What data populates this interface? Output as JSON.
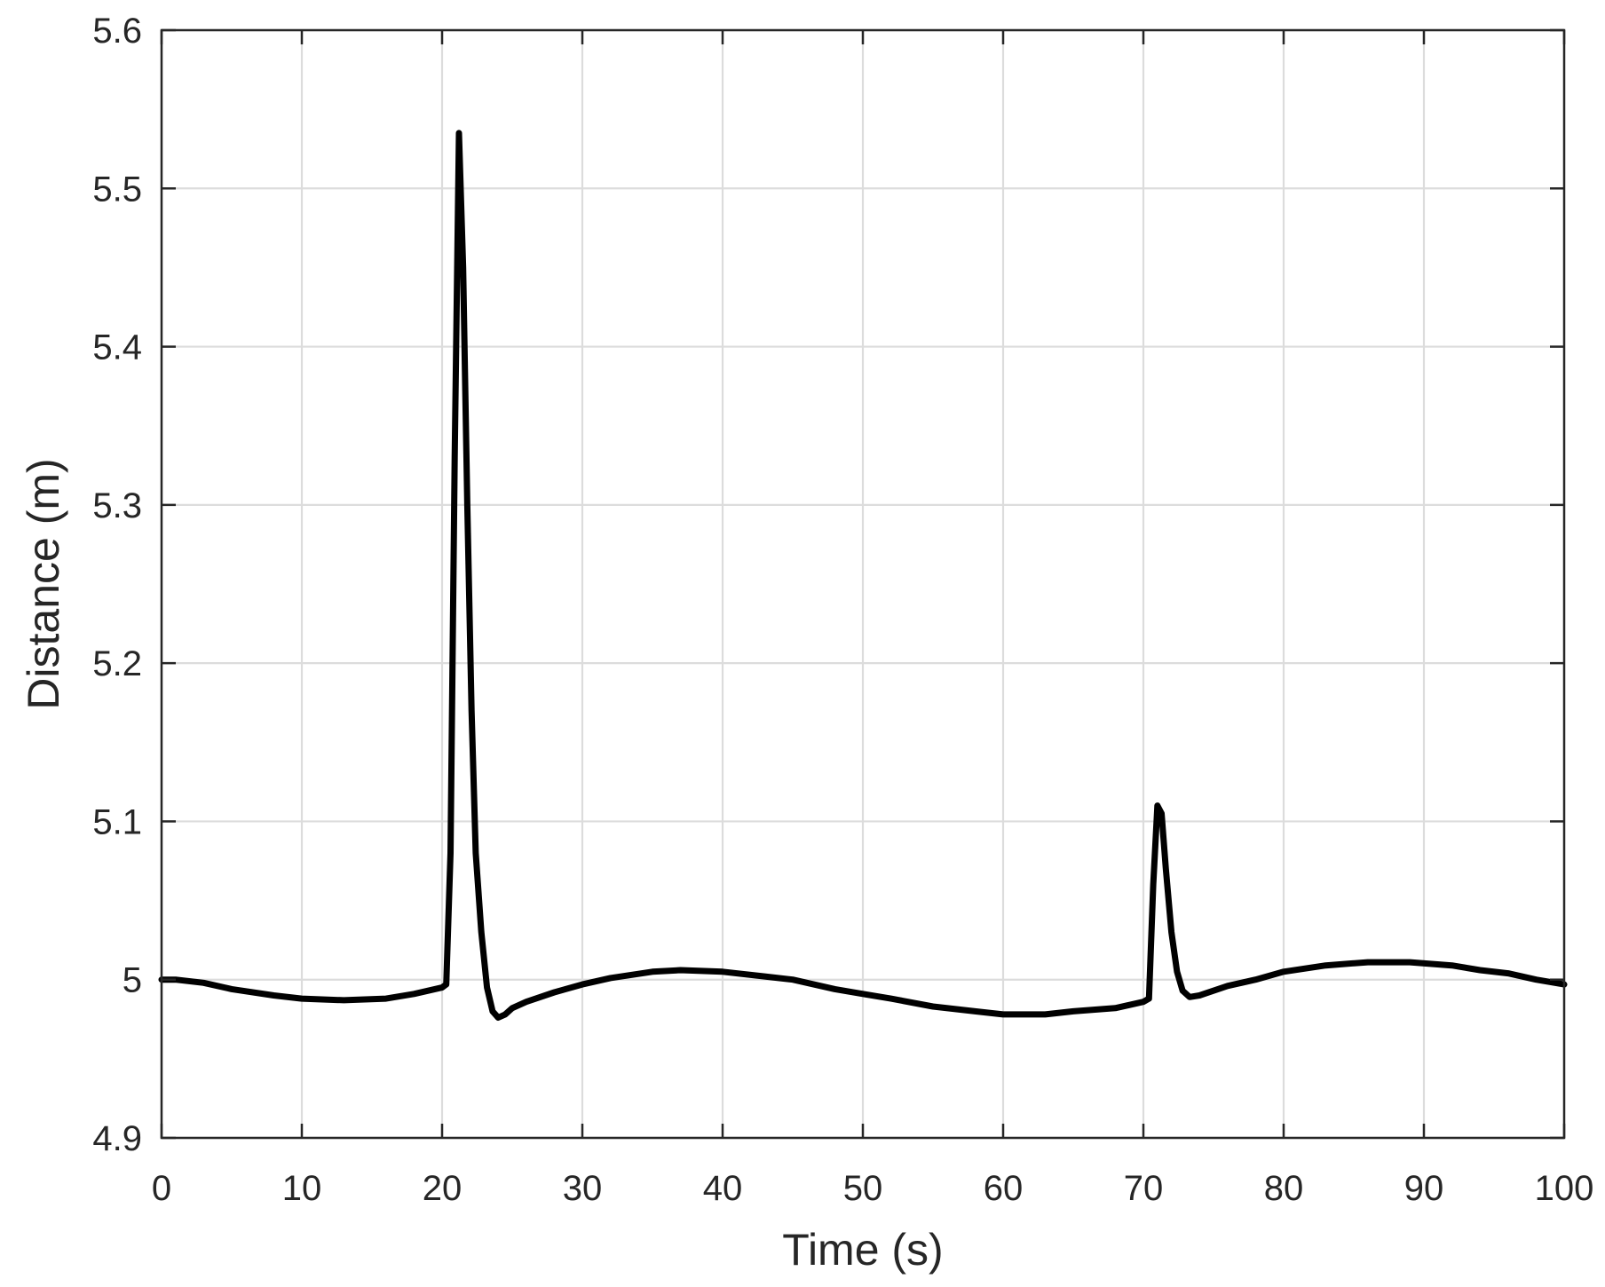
{
  "chart_data": {
    "type": "line",
    "title": "",
    "xlabel": "Time (s)",
    "ylabel": "Distance (m)",
    "xlim": [
      0,
      100
    ],
    "ylim": [
      4.9,
      5.6
    ],
    "x_ticks": [
      "0",
      "10",
      "20",
      "30",
      "40",
      "50",
      "60",
      "70",
      "80",
      "90",
      "100"
    ],
    "y_ticks": [
      "4.9",
      "5",
      "5.1",
      "5.2",
      "5.3",
      "5.4",
      "5.5",
      "5.6"
    ],
    "grid": true,
    "legend": "none",
    "colors": {
      "line": "#000000",
      "grid": "#dcdcdc",
      "axes": "#262626"
    },
    "series": [
      {
        "x": [
          0,
          1,
          3,
          5,
          8,
          10,
          13,
          16,
          18,
          20,
          20.3,
          20.6,
          20.9,
          21.2,
          21.5,
          21.8,
          22.1,
          22.4,
          22.8,
          23.2,
          23.6,
          24,
          24.5,
          25,
          26,
          28,
          30,
          32,
          35,
          37,
          40,
          43,
          45,
          48,
          50,
          52,
          55,
          58,
          60,
          63,
          65,
          68,
          70,
          70.4,
          70.7,
          71,
          71.3,
          71.6,
          72,
          72.4,
          72.8,
          73.3,
          74,
          76,
          78,
          80,
          83,
          86,
          89,
          92,
          94,
          96,
          98,
          100
        ],
        "y": [
          5.0,
          5.0,
          4.998,
          4.994,
          4.99,
          4.988,
          4.987,
          4.988,
          4.991,
          4.995,
          4.997,
          5.08,
          5.33,
          5.535,
          5.45,
          5.3,
          5.17,
          5.08,
          5.03,
          4.995,
          4.98,
          4.976,
          4.978,
          4.982,
          4.986,
          4.992,
          4.997,
          5.001,
          5.005,
          5.006,
          5.005,
          5.002,
          5.0,
          4.994,
          4.991,
          4.988,
          4.983,
          4.98,
          4.978,
          4.978,
          4.98,
          4.982,
          4.986,
          4.988,
          5.06,
          5.11,
          5.105,
          5.07,
          5.03,
          5.005,
          4.993,
          4.989,
          4.99,
          4.996,
          5.0,
          5.005,
          5.009,
          5.011,
          5.011,
          5.009,
          5.006,
          5.004,
          5.0,
          4.997
        ]
      }
    ]
  }
}
